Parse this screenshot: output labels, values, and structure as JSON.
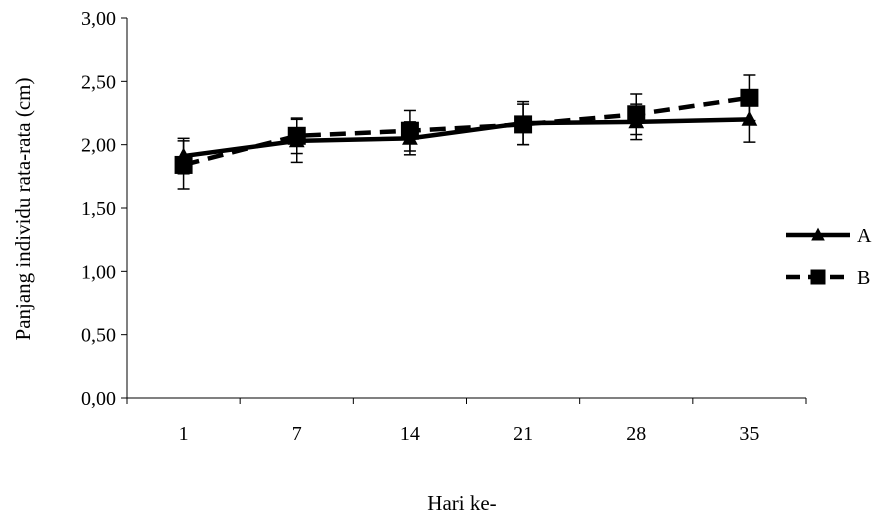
{
  "chart_data": {
    "type": "line",
    "title": "",
    "xlabel": "Hari ke-",
    "ylabel": "Panjang individu rata-rata (cm)",
    "categories": [
      "1",
      "7",
      "14",
      "21",
      "28",
      "35"
    ],
    "ylim": [
      0,
      3
    ],
    "yticks": [
      "0,00",
      "0,50",
      "1,00",
      "1,50",
      "2,00",
      "2,50",
      "3,00"
    ],
    "grid": false,
    "legend_position": "right",
    "series": [
      {
        "name": "A",
        "values": [
          1.91,
          2.03,
          2.05,
          2.17,
          2.18,
          2.2
        ],
        "error": [
          0.14,
          0.17,
          0.13,
          0.17,
          0.14,
          0.18
        ],
        "line_style": "solid",
        "marker": "triangle",
        "color": "#000000"
      },
      {
        "name": "B",
        "values": [
          1.84,
          2.07,
          2.11,
          2.16,
          2.24,
          2.37
        ],
        "error": [
          0.19,
          0.14,
          0.16,
          0.16,
          0.16,
          0.18
        ],
        "line_style": "dashed",
        "marker": "square",
        "color": "#000000"
      }
    ]
  }
}
